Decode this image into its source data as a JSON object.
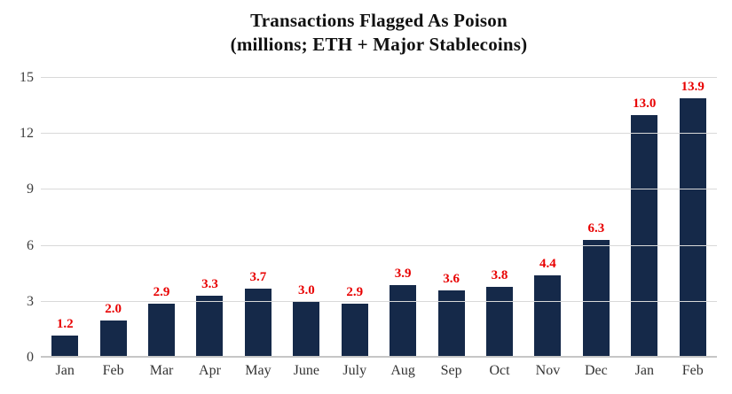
{
  "chart_data": {
    "type": "bar",
    "title_line1": "Transactions Flagged As Poison",
    "title_line2": "(millions; ETH + Major Stablecoins)",
    "categories": [
      "Jan",
      "Feb",
      "Mar",
      "Apr",
      "May",
      "June",
      "July",
      "Aug",
      "Sep",
      "Oct",
      "Nov",
      "Dec",
      "Jan",
      "Feb"
    ],
    "values": [
      1.2,
      2.0,
      2.9,
      3.3,
      3.7,
      3.0,
      2.9,
      3.9,
      3.6,
      3.8,
      4.4,
      6.3,
      13.0,
      13.9
    ],
    "value_labels": [
      "1.2",
      "2.0",
      "2.9",
      "3.3",
      "3.7",
      "3.0",
      "2.9",
      "3.9",
      "3.6",
      "3.8",
      "4.4",
      "6.3",
      "13.0",
      "13.9"
    ],
    "xlabel": "",
    "ylabel": "",
    "ylim": [
      0,
      15
    ],
    "yticks": [
      0,
      3,
      6,
      9,
      12,
      15
    ],
    "ytick_labels": [
      "0",
      "3",
      "6",
      "9",
      "12",
      "15"
    ],
    "grid": true,
    "legend": "none",
    "bar_color": "#152949",
    "value_label_color": "#e80000",
    "axis_text_color": "#3d3d3d",
    "gridline_color": "#d9d9d9"
  }
}
